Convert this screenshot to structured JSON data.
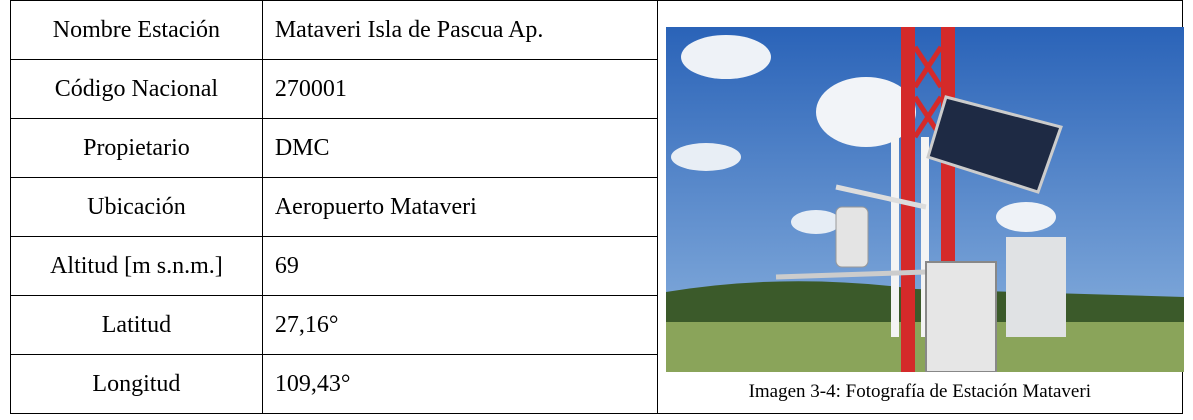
{
  "table": {
    "rows": [
      [
        "Nombre Estación",
        "Mataveri Isla de Pascua Ap."
      ],
      [
        "Código Nacional",
        "270001"
      ],
      [
        "Propietario",
        "DMC"
      ],
      [
        "Ubicación",
        "Aeropuerto Mataveri"
      ],
      [
        "Altitud [m s.n.m.]",
        "69"
      ],
      [
        "Latitud",
        "27,16°"
      ],
      [
        "Longitud",
        "109,43°"
      ]
    ]
  },
  "figure": {
    "caption": "Imagen 3-4: Fotografía de Estación Mataveri"
  }
}
